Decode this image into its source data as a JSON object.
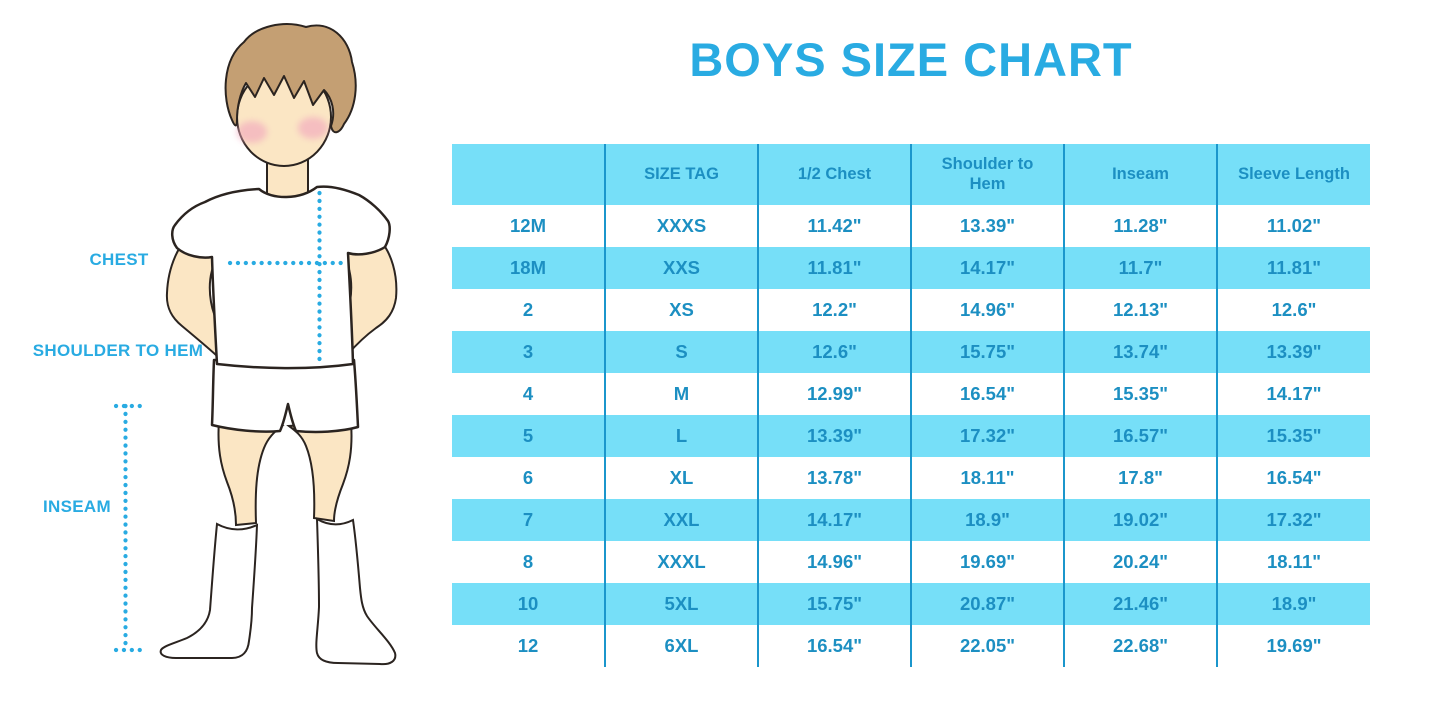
{
  "title": "BOYS SIZE CHART",
  "colors": {
    "accent": "#29ABE2",
    "table_stripe": "#76DFF8",
    "table_text": "#1C8FC2",
    "divider": "#1B96CC",
    "background": "#FFFFFF",
    "skin": "#FBE6C4",
    "hair": "#C49F73",
    "blush": "#F2A9BE",
    "outline": "#2B2420"
  },
  "figure": {
    "description": "boy-measurement-illustration",
    "labels": {
      "chest": "CHEST",
      "shoulder_to_hem": "SHOULDER TO HEM",
      "inseam": "INSEAM"
    }
  },
  "chart_data": {
    "type": "table",
    "title": "BOYS SIZE CHART",
    "columns": [
      "",
      "SIZE TAG",
      "1/2 Chest",
      "Shoulder to Hem",
      "Inseam",
      "Sleeve Length"
    ],
    "rows": [
      [
        "12M",
        "XXXS",
        "11.42\"",
        "13.39\"",
        "11.28\"",
        "11.02\""
      ],
      [
        "18M",
        "XXS",
        "11.81\"",
        "14.17\"",
        "11.7\"",
        "11.81\""
      ],
      [
        "2",
        "XS",
        "12.2\"",
        "14.96\"",
        "12.13\"",
        "12.6\""
      ],
      [
        "3",
        "S",
        "12.6\"",
        "15.75\"",
        "13.74\"",
        "13.39\""
      ],
      [
        "4",
        "M",
        "12.99\"",
        "16.54\"",
        "15.35\"",
        "14.17\""
      ],
      [
        "5",
        "L",
        "13.39\"",
        "17.32\"",
        "16.57\"",
        "15.35\""
      ],
      [
        "6",
        "XL",
        "13.78\"",
        "18.11\"",
        "17.8\"",
        "16.54\""
      ],
      [
        "7",
        "XXL",
        "14.17\"",
        "18.9\"",
        "19.02\"",
        "17.32\""
      ],
      [
        "8",
        "XXXL",
        "14.96\"",
        "19.69\"",
        "20.24\"",
        "18.11\""
      ],
      [
        "10",
        "5XL",
        "15.75\"",
        "20.87\"",
        "21.46\"",
        "18.9\""
      ],
      [
        "12",
        "6XL",
        "16.54\"",
        "22.05\"",
        "22.68\"",
        "19.69\""
      ]
    ],
    "units": "inches",
    "stripe_pattern": "header and alternating rows filled light blue"
  }
}
